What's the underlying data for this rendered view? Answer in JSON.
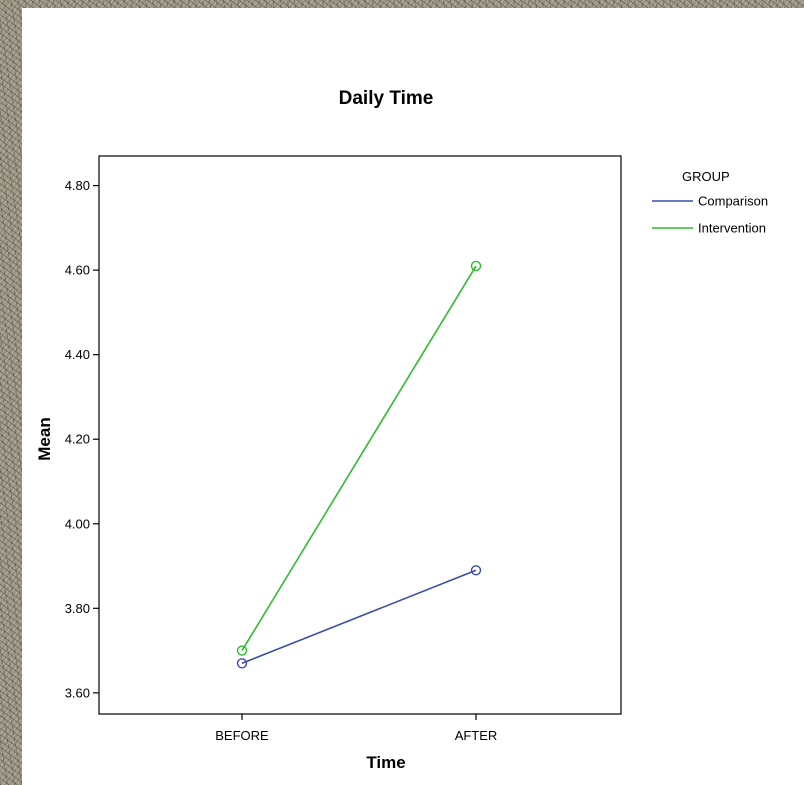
{
  "chart_data": {
    "type": "line",
    "title": "Daily Time",
    "xlabel": "Time",
    "ylabel": "Mean",
    "categories": [
      "BEFORE",
      "AFTER"
    ],
    "ylim": [
      3.55,
      4.87
    ],
    "yticks": [
      3.6,
      3.8,
      4.0,
      4.2,
      4.4,
      4.6,
      4.8
    ],
    "ytick_labels": [
      "3.60",
      "3.80",
      "4.00",
      "4.20",
      "4.40",
      "4.60",
      "4.80"
    ],
    "legend_title": "GROUP",
    "legend_position": "right",
    "grid": false,
    "markers": "open-circle",
    "series": [
      {
        "name": "Comparison",
        "color": "#3a4ea8",
        "values": [
          3.67,
          3.89
        ]
      },
      {
        "name": "Intervention",
        "color": "#2ebd2e",
        "values": [
          3.7,
          4.61
        ]
      }
    ]
  }
}
